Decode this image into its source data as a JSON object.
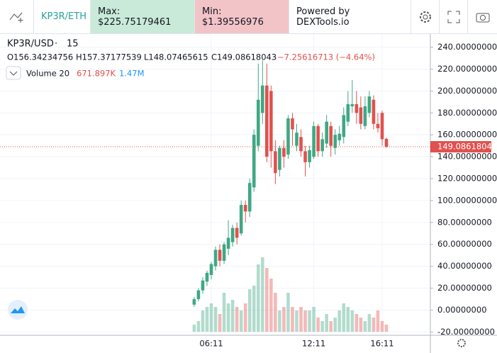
{
  "header": {
    "pair": "KP3R/ETH",
    "max": "Max: $225.75179461",
    "min": "Min: $1.39556976",
    "powered": "Powered by DEXTools.io"
  },
  "chart_data": {
    "type": "candlestick",
    "symbol": "KP3R/USD",
    "interval": 15,
    "legend": {
      "open": "O156.34234756",
      "high": "H157.37177539",
      "low": "L148.07465615",
      "close": "C149.08618043",
      "change": "−7.25616713 (−4.64%)",
      "volume_name": "Volume 20",
      "volume": "671.897K",
      "volume_ma": "1.47M"
    },
    "categories": [
      null,
      null,
      null,
      null,
      "06:11",
      null,
      null,
      null,
      null,
      null,
      null,
      null,
      null,
      null,
      null,
      null,
      null,
      null,
      null,
      null,
      null,
      null,
      null,
      null,
      null,
      null,
      null,
      null,
      "12:11",
      null,
      null,
      null,
      null,
      null,
      null,
      null,
      null,
      null,
      null,
      null,
      null,
      null,
      null,
      null,
      "16:11",
      null
    ],
    "open": [
      5,
      10,
      18,
      26,
      32,
      40,
      55,
      45,
      56,
      62,
      75,
      70,
      96,
      90,
      112,
      150,
      180,
      205,
      200,
      145,
      128,
      148,
      142,
      175,
      150,
      158,
      145,
      135,
      140,
      168,
      145,
      152,
      168,
      148,
      155,
      158,
      172,
      186,
      188,
      185,
      168,
      180,
      192,
      170,
      180,
      156.34234756
    ],
    "high": [
      12,
      20,
      30,
      36,
      44,
      58,
      60,
      62,
      82,
      78,
      80,
      100,
      100,
      120,
      165,
      225,
      228,
      225,
      205,
      155,
      150,
      155,
      178,
      180,
      170,
      165,
      150,
      150,
      172,
      170,
      162,
      178,
      172,
      165,
      168,
      185,
      200,
      210,
      200,
      195,
      195,
      200,
      196,
      180,
      182,
      157.37177539
    ],
    "low": [
      3,
      8,
      15,
      22,
      28,
      36,
      40,
      42,
      50,
      58,
      60,
      68,
      80,
      85,
      108,
      145,
      170,
      135,
      130,
      115,
      122,
      130,
      138,
      150,
      145,
      140,
      122,
      130,
      138,
      140,
      140,
      148,
      140,
      142,
      150,
      152,
      168,
      180,
      170,
      165,
      165,
      176,
      165,
      162,
      150,
      148.07465615
    ],
    "close": [
      10,
      18,
      27,
      34,
      42,
      55,
      45,
      60,
      66,
      75,
      66,
      96,
      90,
      116,
      160,
      192,
      205,
      140,
      145,
      125,
      148,
      140,
      175,
      165,
      162,
      145,
      135,
      146,
      168,
      145,
      156,
      172,
      150,
      160,
      161,
      178,
      188,
      188,
      180,
      170,
      186,
      195,
      170,
      166,
      156,
      149.08618043
    ],
    "volume": [
      670000,
      1005000,
      2010000,
      2345000,
      2680000,
      2345000,
      1675000,
      3685000,
      2680000,
      3015000,
      2345000,
      2010000,
      2680000,
      4020000,
      4355000,
      6365000,
      7035000,
      6030000,
      5025000,
      3685000,
      2010000,
      2345000,
      3685000,
      2345000,
      2010000,
      2345000,
      2010000,
      2010000,
      2345000,
      1340000,
      1005000,
      1675000,
      1005000,
      1340000,
      2010000,
      2680000,
      2345000,
      2010000,
      1675000,
      1340000,
      1005000,
      1675000,
      1340000,
      2010000,
      1005000,
      671897
    ],
    "up_color": "#3fa883",
    "down_color": "#e0514f",
    "grid": true,
    "ylim": [
      -23,
      252
    ],
    "yticks": [
      {
        "value": -20,
        "label": "-20.00000000"
      },
      {
        "value": 0,
        "label": "0.00000000"
      },
      {
        "value": 20,
        "label": "20.00000000"
      },
      {
        "value": 40,
        "label": "40.00000000"
      },
      {
        "value": 60,
        "label": "60.00000000"
      },
      {
        "value": 80,
        "label": "80.00000000"
      },
      {
        "value": 100,
        "label": "100.00000000"
      },
      {
        "value": 120,
        "label": "120.00000000"
      },
      {
        "value": 140,
        "label": "140.00000000"
      },
      {
        "value": 160,
        "label": "160.00000000"
      },
      {
        "value": 180,
        "label": "180.00000000"
      },
      {
        "value": 200,
        "label": "200.00000000"
      },
      {
        "value": 220,
        "label": "220.00000000"
      },
      {
        "value": 240,
        "label": "240.00000000"
      }
    ]
  }
}
